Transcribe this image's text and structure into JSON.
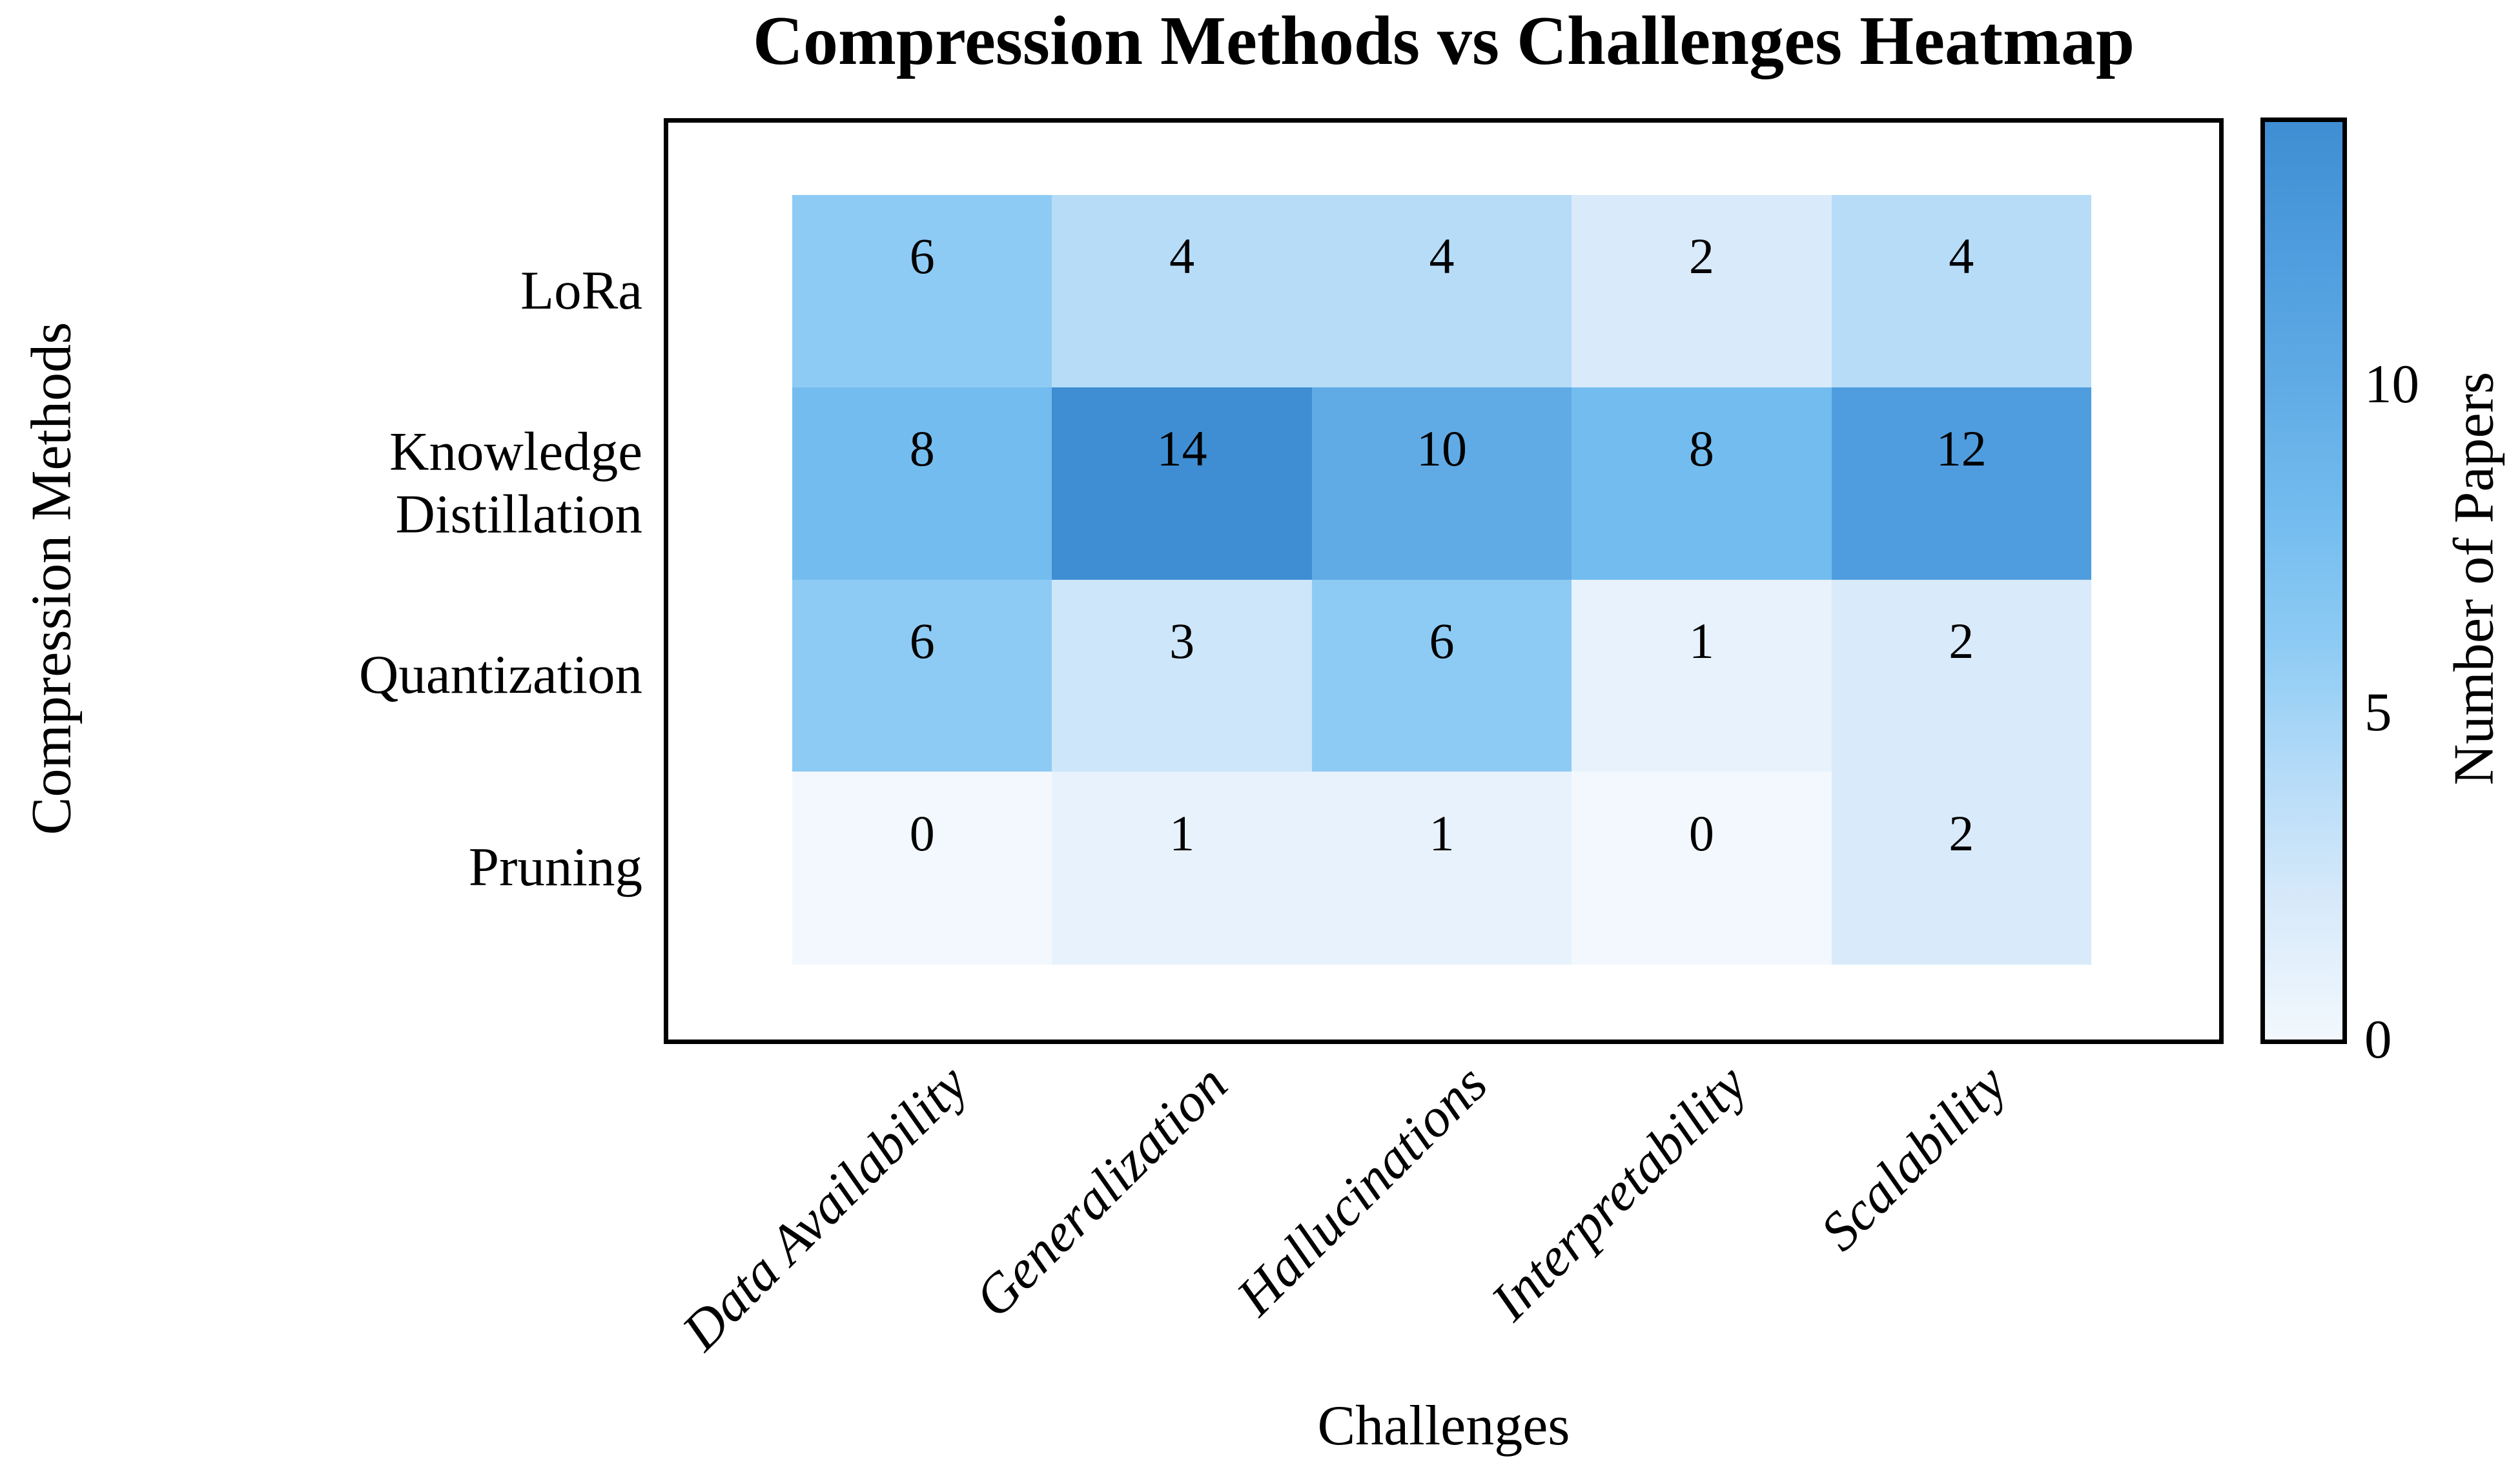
{
  "chart_data": {
    "type": "heatmap",
    "title": "Compression Methods vs Challenges Heatmap",
    "xlabel": "Challenges",
    "ylabel": "Compression Methods",
    "x_categories": [
      "Data Availability",
      "Generalization",
      "Hallucinations",
      "Interpretability",
      "Scalability"
    ],
    "y_categories": [
      "LoRa",
      "Knowledge\nDistillation",
      "Quantization",
      "Pruning"
    ],
    "values": [
      [
        6,
        4,
        4,
        2,
        4
      ],
      [
        8,
        14,
        10,
        8,
        12
      ],
      [
        6,
        3,
        6,
        1,
        2
      ],
      [
        0,
        1,
        1,
        0,
        2
      ]
    ],
    "colorbar": {
      "label": "Number of Papers",
      "ticks": [
        0,
        5,
        10
      ],
      "vmin": 0,
      "vmax": 14
    },
    "layout_hints": {
      "x_tick_rotation_deg": 45,
      "x_ticks_italic": true,
      "grid": "off",
      "legend": "colorbar-right",
      "cell_text_color": "#000000"
    },
    "colors": {
      "background": "#ffffff",
      "frame": "#000000",
      "text": "#000000",
      "value_colors": {
        "0": "#f2f8fd",
        "1": "#e7f2fc",
        "2": "#d9eafa",
        "3": "#cde6fa",
        "4": "#b6dcf8",
        "6": "#8ecbf4",
        "8": "#73bcef",
        "10": "#60abe5",
        "12": "#4f9dde",
        "14": "#3f8ed3"
      },
      "gradient_values": [
        0,
        2,
        4,
        6,
        8,
        10,
        12,
        14
      ]
    }
  }
}
